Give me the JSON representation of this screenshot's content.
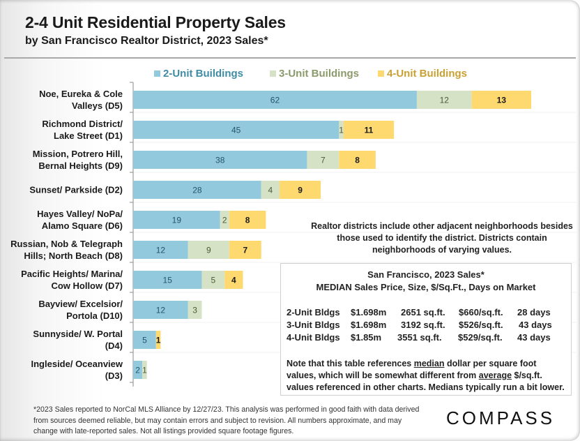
{
  "header": {
    "title": "2-4 Unit Residential Property Sales",
    "subtitle": "by San Francisco Realtor District, 2023 Sales*"
  },
  "colors": {
    "two_unit": "#92c9dc",
    "three_unit": "#d6e2c6",
    "four_unit": "#fdd970",
    "two_unit_legend_text": "#3f8ca5",
    "three_unit_legend_text": "#8a9a6a",
    "four_unit_legend_text": "#c9a032",
    "two_unit_value_text": "#24556a",
    "three_unit_value_text": "#4d5a35",
    "four_unit_value_text": "#1a1a1a"
  },
  "chart_data": {
    "type": "bar",
    "orientation": "horizontal",
    "stacked": true,
    "title": "2-4 Unit Residential Property Sales",
    "subtitle": "by San Francisco Realtor District, 2023 Sales*",
    "xlabel": "",
    "ylabel": "",
    "legend_position": "top",
    "grid": false,
    "categories": [
      [
        "Noe, Eureka & Cole",
        "Valleys (D5)"
      ],
      [
        "Richmond District/",
        "Lake Street (D1)"
      ],
      [
        "Mission, Potrero Hill,",
        "Bernal Heights (D9)"
      ],
      [
        "Sunset/ Parkside (D2)"
      ],
      [
        "Hayes Valley/ NoPa/",
        "Alamo Square (D6)"
      ],
      [
        "Russian, Nob & Telegraph",
        "Hills; North Beach (D8)"
      ],
      [
        "Pacific Heights/ Marina/",
        "Cow Hollow (D7)"
      ],
      [
        "Bayview/ Excelsior/",
        "Portola (D10)"
      ],
      [
        "Sunnyside/ W. Portal",
        "(D4)"
      ],
      [
        "Ingleside/ Oceanview",
        "(D3)"
      ]
    ],
    "series": [
      {
        "name": "2-Unit Buildings",
        "key": "two_unit",
        "values": [
          62,
          45,
          38,
          28,
          19,
          12,
          15,
          12,
          5,
          2
        ]
      },
      {
        "name": "3-Unit Buildings",
        "key": "three_unit",
        "values": [
          12,
          1,
          7,
          4,
          2,
          9,
          5,
          3,
          0,
          1
        ]
      },
      {
        "name": "4-Unit Buildings",
        "key": "four_unit",
        "values": [
          13,
          11,
          8,
          9,
          8,
          7,
          4,
          0,
          1,
          0
        ]
      }
    ],
    "xlim": [
      0,
      87
    ]
  },
  "notes": {
    "districts_note": "Realtor districts include other adjacent neighborhoods besides those used to identify the district. Districts contain neighborhoods of varying values."
  },
  "stats_table": {
    "heading_line1": "San Francisco, 2023 Sales*",
    "heading_line2": "MEDIAN Sales Price, Size, $/Sq.Ft., Days on Market",
    "rows": [
      {
        "type": "2-Unit Bldgs",
        "price": "$1.698m",
        "size": "2651 sq.ft.",
        "ppsf": "$660/sq.ft.",
        "dom": "28 days"
      },
      {
        "type": "3-Unit Bldgs",
        "price": "$1.698m",
        "size": "3192 sq.ft.",
        "ppsf": "$526/sq.ft.",
        "dom": "43 days"
      },
      {
        "type": "4-Unit Bldgs",
        "price": "$1.85m",
        "size": "3551 sq.ft.",
        "ppsf": "$529/sq.ft.",
        "dom": "43 days"
      }
    ],
    "note_part1": "Note that this table references ",
    "note_median": "median",
    "note_part2": " dollar per square foot values, which will be somewhat different from ",
    "note_average": "average",
    "note_part3": " $/sq.ft. values referenced in other charts. Medians typically run a bit lower."
  },
  "footer": {
    "footnote": "*2023 Sales reported to NorCal MLS Alliance by 12/27/23. This analysis was performed in good faith with data derived from sources deemed reliable, but may contain errors and subject to revision. All numbers approximate, and may change with late-reported sales. Not all listings provided square footage figures.",
    "logo": "COMPASS"
  }
}
